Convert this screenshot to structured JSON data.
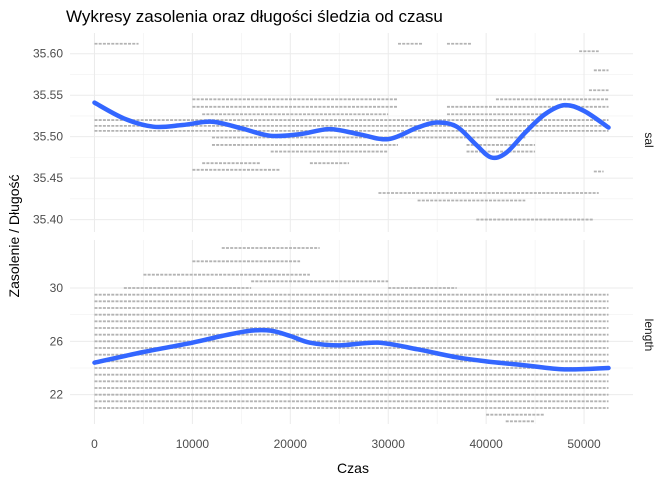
{
  "chart_data": {
    "type": "scatter",
    "title": "Wykresy zasolenia oraz długości śledzia od czasu",
    "xlabel": "Czas",
    "ylabel": "Zasolenie / Długość",
    "xlim": [
      -2500,
      55000
    ],
    "x_ticks": [
      0,
      10000,
      20000,
      30000,
      40000,
      50000
    ],
    "x_tick_labels": [
      "0",
      "10000",
      "20000",
      "30000",
      "40000",
      "50000"
    ],
    "grid": true,
    "smooth_color": "#3366ff",
    "point_color": "#b3b3b3",
    "panels": [
      {
        "strip_label": "sal",
        "ylim": [
          35.385,
          35.625
        ],
        "y_ticks": [
          35.4,
          35.45,
          35.5,
          35.55,
          35.6
        ],
        "y_tick_labels": [
          "35.40",
          "35.45",
          "35.50",
          "35.55",
          "35.60"
        ],
        "smooth": {
          "x": [
            0,
            3000,
            6000,
            9000,
            12000,
            15000,
            18000,
            21000,
            24000,
            27000,
            30000,
            33000,
            35000,
            37000,
            39000,
            40500,
            42000,
            44000,
            46000,
            48000,
            50000,
            52500
          ],
          "y": [
            35.541,
            35.522,
            35.512,
            35.514,
            35.518,
            35.51,
            35.501,
            35.503,
            35.509,
            35.503,
            35.497,
            35.511,
            35.517,
            35.512,
            35.49,
            35.475,
            35.48,
            35.505,
            35.527,
            35.538,
            35.531,
            35.511
          ]
        },
        "points": [
          {
            "x0": 0,
            "x1": 3000,
            "y": 35.612
          },
          {
            "x0": 3000,
            "x1": 4500,
            "y": 35.612
          },
          {
            "x0": 31000,
            "x1": 33500,
            "y": 35.612
          },
          {
            "x0": 36000,
            "x1": 38500,
            "y": 35.612
          },
          {
            "x0": 49500,
            "x1": 51500,
            "y": 35.603
          },
          {
            "x0": 51000,
            "x1": 52500,
            "y": 35.58
          },
          {
            "x0": 50500,
            "x1": 52500,
            "y": 35.556
          },
          {
            "x0": 10000,
            "x1": 31000,
            "y": 35.545
          },
          {
            "x0": 41000,
            "x1": 52500,
            "y": 35.545
          },
          {
            "x0": 10000,
            "x1": 31000,
            "y": 35.536
          },
          {
            "x0": 36000,
            "x1": 52500,
            "y": 35.536
          },
          {
            "x0": 11000,
            "x1": 30000,
            "y": 35.527
          },
          {
            "x0": 36000,
            "x1": 46000,
            "y": 35.527
          },
          {
            "x0": 0,
            "x1": 52500,
            "y": 35.52
          },
          {
            "x0": 0,
            "x1": 52500,
            "y": 35.513
          },
          {
            "x0": 0,
            "x1": 52500,
            "y": 35.507
          },
          {
            "x0": 12000,
            "x1": 44000,
            "y": 35.499
          },
          {
            "x0": 12000,
            "x1": 31000,
            "y": 35.49
          },
          {
            "x0": 38000,
            "x1": 45000,
            "y": 35.49
          },
          {
            "x0": 18000,
            "x1": 30000,
            "y": 35.482
          },
          {
            "x0": 38000,
            "x1": 45000,
            "y": 35.482
          },
          {
            "x0": 11000,
            "x1": 17000,
            "y": 35.468
          },
          {
            "x0": 22000,
            "x1": 26000,
            "y": 35.468
          },
          {
            "x0": 10000,
            "x1": 19000,
            "y": 35.46
          },
          {
            "x0": 51000,
            "x1": 52000,
            "y": 35.458
          },
          {
            "x0": 29000,
            "x1": 51500,
            "y": 35.432
          },
          {
            "x0": 33000,
            "x1": 44000,
            "y": 35.423
          },
          {
            "x0": 39000,
            "x1": 51000,
            "y": 35.4
          }
        ]
      },
      {
        "strip_label": "length",
        "ylim": [
          19.8,
          33.6
        ],
        "y_ticks": [
          22,
          26,
          30
        ],
        "y_tick_labels": [
          "22",
          "26",
          "30"
        ],
        "smooth": {
          "x": [
            0,
            5000,
            10000,
            13000,
            16000,
            18000,
            20000,
            22000,
            25000,
            29000,
            33000,
            37000,
            40000,
            44000,
            48000,
            52500
          ],
          "y": [
            24.4,
            25.2,
            25.9,
            26.4,
            26.8,
            26.8,
            26.4,
            25.9,
            25.7,
            25.9,
            25.4,
            24.8,
            24.5,
            24.2,
            23.9,
            24.0
          ]
        },
        "length_min": 21.0,
        "length_max": 29.5,
        "length_step": 0.5,
        "length_xmin": 0,
        "length_xmax": 52500,
        "extra_points": [
          {
            "x0": 3000,
            "x1": 16000,
            "y": 30.0
          },
          {
            "x0": 16000,
            "x1": 30000,
            "y": 30.5
          },
          {
            "x0": 30000,
            "x1": 37000,
            "y": 30.0
          },
          {
            "x0": 5000,
            "x1": 22000,
            "y": 31.0
          },
          {
            "x0": 10000,
            "x1": 21000,
            "y": 32.0
          },
          {
            "x0": 13000,
            "x1": 23000,
            "y": 33.0
          },
          {
            "x0": 40000,
            "x1": 46000,
            "y": 20.5
          },
          {
            "x0": 42000,
            "x1": 45000,
            "y": 20.0
          }
        ]
      }
    ]
  }
}
